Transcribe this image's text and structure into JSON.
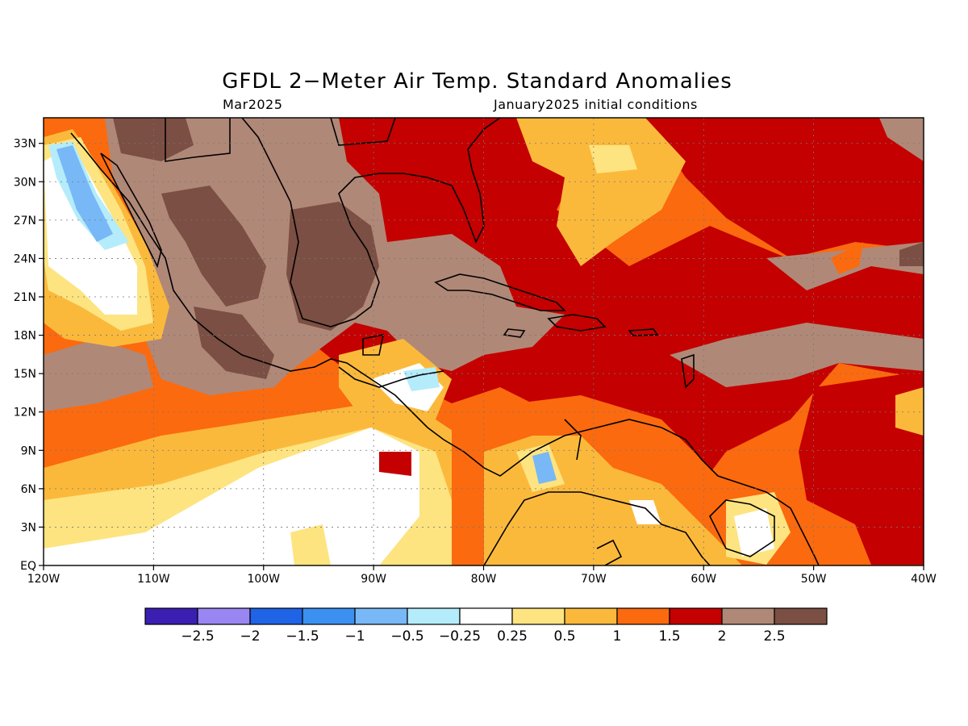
{
  "title": "GFDL 2−Meter Air Temp. Standard Anomalies",
  "subtitle_left": "Mar2025",
  "subtitle_right": "January2025 initial conditions",
  "map": {
    "lon_range": [
      -120,
      -40
    ],
    "lat_range": [
      0,
      35
    ],
    "grid": true,
    "x_ticks": [
      {
        "lon": -120,
        "label": "120W"
      },
      {
        "lon": -110,
        "label": "110W"
      },
      {
        "lon": -100,
        "label": "100W"
      },
      {
        "lon": -90,
        "label": "90W"
      },
      {
        "lon": -80,
        "label": "80W"
      },
      {
        "lon": -70,
        "label": "70W"
      },
      {
        "lon": -60,
        "label": "60W"
      },
      {
        "lon": -50,
        "label": "50W"
      },
      {
        "lon": -40,
        "label": "40W"
      }
    ],
    "y_ticks": [
      {
        "lat": 0,
        "label": "EQ"
      },
      {
        "lat": 3,
        "label": "3N"
      },
      {
        "lat": 6,
        "label": "6N"
      },
      {
        "lat": 9,
        "label": "9N"
      },
      {
        "lat": 12,
        "label": "12N"
      },
      {
        "lat": 15,
        "label": "15N"
      },
      {
        "lat": 18,
        "label": "18N"
      },
      {
        "lat": 21,
        "label": "21N"
      },
      {
        "lat": 24,
        "label": "24N"
      },
      {
        "lat": 27,
        "label": "27N"
      },
      {
        "lat": 30,
        "label": "30N"
      },
      {
        "lat": 33,
        "label": "33N"
      }
    ]
  },
  "colorbar": {
    "colors": [
      "#3b1fb3",
      "#9a86f2",
      "#1f63e6",
      "#3c90f2",
      "#78b8f6",
      "#b4ecfb",
      "#ffffff",
      "#fde480",
      "#fbb93c",
      "#fb6a0e",
      "#c40000",
      "#b08878",
      "#7b4f43"
    ],
    "labels": [
      "−2.5",
      "−2",
      "−1.5",
      "−1",
      "−0.5",
      "−0.25",
      "0.25",
      "0.5",
      "1",
      "1.5",
      "2",
      "2.5"
    ]
  }
}
